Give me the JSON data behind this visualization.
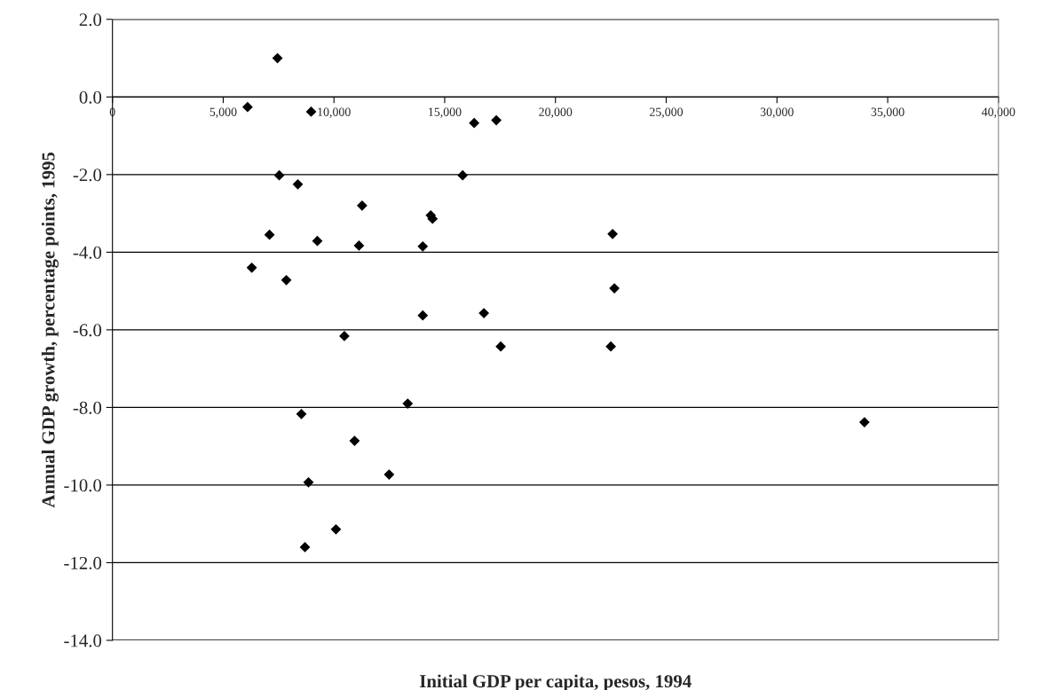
{
  "chart_data": {
    "type": "scatter",
    "xlabel": "Initial GDP per capita, pesos, 1994",
    "ylabel": "Annual GDP growth, percentage points, 1995",
    "x": [
      6100,
      7450,
      8970,
      16330,
      17330,
      7530,
      8370,
      15810,
      11270,
      14370,
      14450,
      7090,
      9250,
      11130,
      14010,
      22580,
      6290,
      7850,
      22660,
      14010,
      16770,
      10470,
      17530,
      22500,
      13330,
      8530,
      33950,
      10930,
      8850,
      12490,
      10090,
      8690
    ],
    "series": [
      {
        "color": "#000000",
        "values": [
          -0.26,
          1.0,
          -0.38,
          -0.67,
          -0.6,
          -2.02,
          -2.25,
          -2.02,
          -2.8,
          -3.05,
          -3.14,
          -3.55,
          -3.71,
          -3.83,
          -3.85,
          -3.53,
          -4.4,
          -4.72,
          -4.93,
          -5.63,
          -5.57,
          -6.16,
          -6.43,
          -6.43,
          -7.9,
          -8.17,
          -8.38,
          -8.86,
          -9.93,
          -9.73,
          -11.14,
          -11.6
        ]
      }
    ],
    "xlim": [
      0,
      40000
    ],
    "xticks": [
      {
        "value": 0,
        "label": "0"
      },
      {
        "value": 5000,
        "label": "5,000"
      },
      {
        "value": 10000,
        "label": "10,000"
      },
      {
        "value": 15000,
        "label": "15,000"
      },
      {
        "value": 20000,
        "label": "20,000"
      },
      {
        "value": 25000,
        "label": "25,000"
      },
      {
        "value": 30000,
        "label": "30,000"
      },
      {
        "value": 35000,
        "label": "35,000"
      },
      {
        "value": 40000,
        "label": "40,000"
      }
    ],
    "ylim": [
      -14,
      2
    ],
    "yticks": [
      {
        "value": 2,
        "label": "2.0"
      },
      {
        "value": 0,
        "label": "0.0"
      },
      {
        "value": -2,
        "label": "-2.0"
      },
      {
        "value": -4,
        "label": "-4.0"
      },
      {
        "value": -6,
        "label": "-6.0"
      },
      {
        "value": -8,
        "label": "-8.0"
      },
      {
        "value": -10,
        "label": "-10.0"
      },
      {
        "value": -12,
        "label": "-12.0"
      },
      {
        "value": -14,
        "label": "-14.0"
      }
    ],
    "grid": "y",
    "marker": "diamond",
    "legend": false
  }
}
